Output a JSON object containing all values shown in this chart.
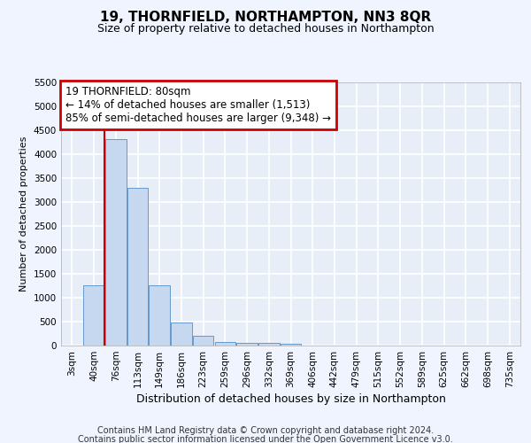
{
  "title": "19, THORNFIELD, NORTHAMPTON, NN3 8QR",
  "subtitle": "Size of property relative to detached houses in Northampton",
  "xlabel": "Distribution of detached houses by size in Northampton",
  "ylabel": "Number of detached properties",
  "footer_line1": "Contains HM Land Registry data © Crown copyright and database right 2024.",
  "footer_line2": "Contains public sector information licensed under the Open Government Licence v3.0.",
  "bin_labels": [
    "3sqm",
    "40sqm",
    "76sqm",
    "113sqm",
    "149sqm",
    "186sqm",
    "223sqm",
    "259sqm",
    "296sqm",
    "332sqm",
    "369sqm",
    "406sqm",
    "442sqm",
    "479sqm",
    "515sqm",
    "552sqm",
    "589sqm",
    "625sqm",
    "662sqm",
    "698sqm",
    "735sqm"
  ],
  "bar_values": [
    0,
    1250,
    4300,
    3300,
    1250,
    480,
    200,
    80,
    60,
    50,
    40,
    0,
    0,
    0,
    0,
    0,
    0,
    0,
    0,
    0,
    0
  ],
  "bar_color": "#c5d8f0",
  "bar_edge_color": "#6699cc",
  "ylim": [
    0,
    5500
  ],
  "yticks": [
    0,
    500,
    1000,
    1500,
    2000,
    2500,
    3000,
    3500,
    4000,
    4500,
    5000,
    5500
  ],
  "red_line_x": 1.5,
  "annotation_text_line1": "19 THORNFIELD: 80sqm",
  "annotation_text_line2": "← 14% of detached houses are smaller (1,513)",
  "annotation_text_line3": "85% of semi-detached houses are larger (9,348) →",
  "annotation_box_color": "white",
  "annotation_box_edge_color": "#cc0000",
  "red_line_color": "#cc0000",
  "background_color": "#f0f4ff",
  "plot_bg_color": "#e8eef8",
  "grid_color": "white",
  "title_fontsize": 11,
  "subtitle_fontsize": 9,
  "ylabel_fontsize": 8,
  "xlabel_fontsize": 9,
  "tick_fontsize": 7.5,
  "footer_fontsize": 7
}
